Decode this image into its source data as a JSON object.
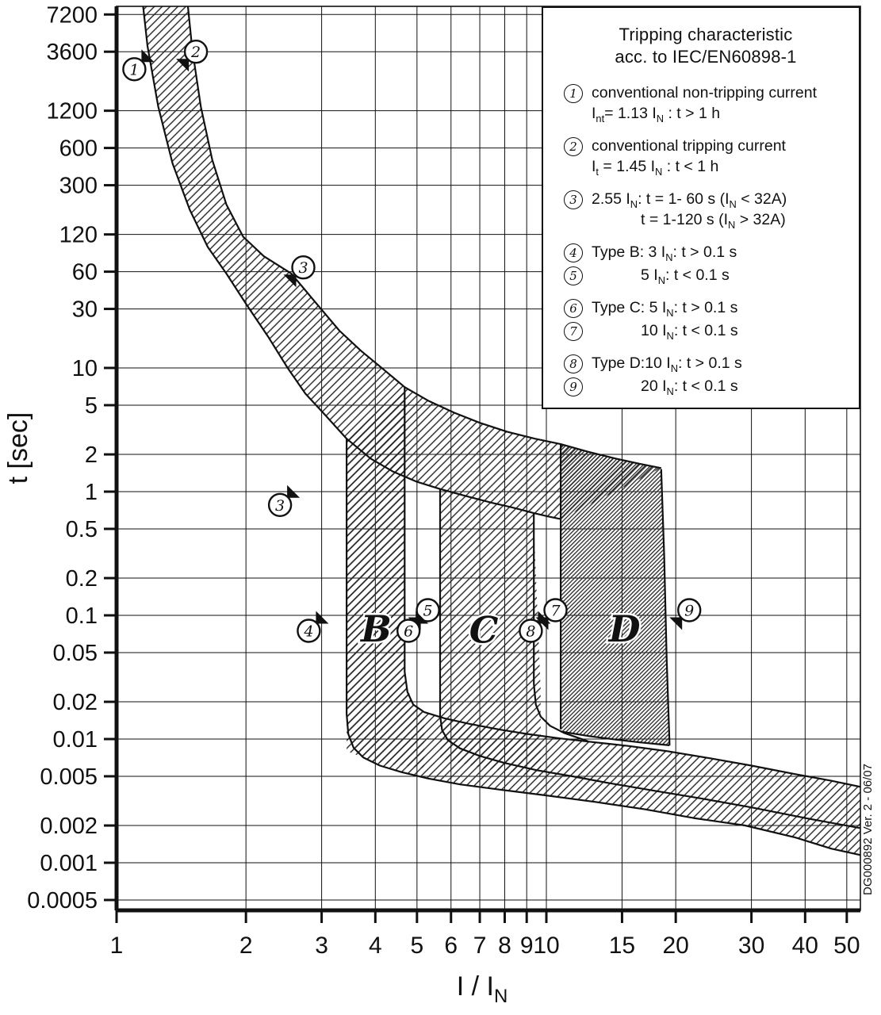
{
  "figure": {
    "y_axis_title": "t [sec]",
    "x_axis_title_segments": [
      {
        "t": "I / I"
      },
      {
        "sub": "N"
      }
    ],
    "code_label": "DG000892 Ver. 2 - 06/07"
  },
  "legend": {
    "title_lines": [
      "Tripping characteristic",
      "acc. to IEC/EN60898-1"
    ],
    "items": [
      {
        "num": "1",
        "gap_before": false,
        "lines": [
          {
            "indent": false,
            "segs": [
              {
                "t": "conventional non-tripping current"
              }
            ]
          },
          {
            "indent": false,
            "segs": [
              {
                "t": "I"
              },
              {
                "sub": "nt"
              },
              {
                "t": "= 1.13 I"
              },
              {
                "sub": "N"
              },
              {
                "t": " : t > 1 h"
              }
            ]
          }
        ]
      },
      {
        "num": "2",
        "gap_before": true,
        "lines": [
          {
            "indent": false,
            "segs": [
              {
                "t": "conventional tripping current"
              }
            ]
          },
          {
            "indent": false,
            "segs": [
              {
                "t": "I"
              },
              {
                "sub": "t"
              },
              {
                "t": " = 1.45 I"
              },
              {
                "sub": "N"
              },
              {
                "t": " : t < 1 h"
              }
            ]
          }
        ]
      },
      {
        "num": "3",
        "gap_before": true,
        "lines": [
          {
            "indent": false,
            "segs": [
              {
                "t": "2.55 I"
              },
              {
                "sub": "N"
              },
              {
                "t": ": t = 1- 60 s (I"
              },
              {
                "sub": "N"
              },
              {
                "t": " < 32A)"
              }
            ]
          },
          {
            "indent": true,
            "segs": [
              {
                "t": "t = 1-120 s (I"
              },
              {
                "sub": "N"
              },
              {
                "t": " > 32A)"
              }
            ]
          }
        ]
      },
      {
        "num": "4",
        "gap_before": true,
        "lines": [
          {
            "indent": false,
            "segs": [
              {
                "t": "Type B: 3 I"
              },
              {
                "sub": "N"
              },
              {
                "t": ": t > 0.1 s"
              }
            ]
          }
        ]
      },
      {
        "num": "5",
        "gap_before": false,
        "lines": [
          {
            "indent": true,
            "segs": [
              {
                "t": "5 I"
              },
              {
                "sub": "N"
              },
              {
                "t": ": t < 0.1 s"
              }
            ]
          }
        ]
      },
      {
        "num": "6",
        "gap_before": true,
        "lines": [
          {
            "indent": false,
            "segs": [
              {
                "t": "Type C: 5 I"
              },
              {
                "sub": "N"
              },
              {
                "t": ": t > 0.1 s"
              }
            ]
          }
        ]
      },
      {
        "num": "7",
        "gap_before": false,
        "lines": [
          {
            "indent": true,
            "segs": [
              {
                "t": "10 I"
              },
              {
                "sub": "N"
              },
              {
                "t": ": t < 0.1 s"
              }
            ]
          }
        ]
      },
      {
        "num": "8",
        "gap_before": true,
        "lines": [
          {
            "indent": false,
            "segs": [
              {
                "t": "Type D:10 I"
              },
              {
                "sub": "N"
              },
              {
                "t": ": t > 0.1 s"
              }
            ]
          }
        ]
      },
      {
        "num": "9",
        "gap_before": false,
        "lines": [
          {
            "indent": true,
            "segs": [
              {
                "t": "20 I"
              },
              {
                "sub": "N"
              },
              {
                "t": ": t < 0.1 s"
              }
            ]
          }
        ]
      }
    ]
  },
  "chart_data": {
    "type": "area",
    "title": "Tripping characteristic acc. to IEC/EN60898-1",
    "xlabel": "I / I_N",
    "ylabel": "t [sec]",
    "x_axis": {
      "scale": "log",
      "ticks": [
        1,
        2,
        3,
        4,
        5,
        6,
        7,
        8,
        9,
        10,
        15,
        20,
        30,
        40,
        50
      ],
      "range": [
        1,
        53.9
      ]
    },
    "y_axis": {
      "scale": "log",
      "ticks": [
        7200,
        3600,
        1200,
        600,
        300,
        120,
        60,
        30,
        10,
        5,
        2,
        1,
        0.5,
        0.2,
        0.1,
        0.05,
        0.02,
        0.01,
        0.005,
        0.002,
        0.001,
        0.0005
      ],
      "range": [
        0.00041,
        8400
      ]
    },
    "grid": true,
    "curves": {
      "conventional_non_tripping_1": [
        [
          1.14,
          12000
        ],
        [
          1.18,
          4000
        ],
        [
          1.25,
          1300
        ],
        [
          1.35,
          450
        ],
        [
          1.48,
          190
        ],
        [
          1.63,
          95
        ],
        [
          1.8,
          58
        ],
        [
          2.0,
          33
        ],
        [
          2.25,
          18
        ],
        [
          2.5,
          10
        ],
        [
          2.75,
          6.2
        ],
        [
          3.05,
          4.2
        ],
        [
          3.43,
          2.68
        ],
        [
          3.9,
          1.85
        ],
        [
          4.4,
          1.45
        ],
        [
          5.0,
          1.2
        ],
        [
          5.66,
          1.05
        ],
        [
          6.5,
          0.92
        ],
        [
          7.5,
          0.81
        ],
        [
          8.4,
          0.74
        ],
        [
          9.35,
          0.67
        ],
        [
          10.1,
          0.63
        ],
        [
          10.8,
          0.6
        ]
      ],
      "conventional_tripping_2": [
        [
          1.45,
          12000
        ],
        [
          1.5,
          3800
        ],
        [
          1.57,
          1300
        ],
        [
          1.67,
          480
        ],
        [
          1.8,
          210
        ],
        [
          1.97,
          115
        ],
        [
          2.2,
          80
        ],
        [
          2.55,
          58
        ],
        [
          2.9,
          34
        ],
        [
          3.3,
          20
        ],
        [
          3.7,
          13.8
        ],
        [
          4.2,
          9.6
        ],
        [
          4.68,
          7.0
        ],
        [
          5.3,
          5.45
        ],
        [
          6.1,
          4.35
        ],
        [
          7.0,
          3.6
        ],
        [
          8.1,
          3.05
        ],
        [
          9.4,
          2.68
        ],
        [
          10.8,
          2.42
        ],
        [
          12.5,
          2.1
        ],
        [
          14.5,
          1.85
        ],
        [
          16.5,
          1.68
        ],
        [
          18.5,
          1.55
        ]
      ],
      "b_lower_boundary": [
        [
          3.43,
          2.68
        ],
        [
          3.43,
          0.016
        ],
        [
          3.46,
          0.011
        ],
        [
          3.56,
          0.0085
        ],
        [
          3.75,
          0.0071
        ],
        [
          4.1,
          0.0061
        ],
        [
          4.6,
          0.0054
        ],
        [
          5.3,
          0.0048
        ],
        [
          6.3,
          0.0043
        ],
        [
          7.8,
          0.0039
        ],
        [
          10,
          0.0035
        ],
        [
          13,
          0.0031
        ],
        [
          17,
          0.0027
        ],
        [
          22,
          0.0023
        ],
        [
          29,
          0.002
        ],
        [
          38,
          0.0016
        ],
        [
          46,
          0.0013
        ],
        [
          54,
          0.00115
        ]
      ],
      "b_upper_boundary": [
        [
          4.68,
          7.0
        ],
        [
          4.68,
          0.035
        ],
        [
          4.75,
          0.024
        ],
        [
          4.9,
          0.019
        ],
        [
          5.2,
          0.0165
        ],
        [
          5.8,
          0.0147
        ],
        [
          6.6,
          0.0133
        ],
        [
          7.7,
          0.012
        ],
        [
          9.0,
          0.011
        ],
        [
          10.8,
          0.0101
        ],
        [
          13,
          0.0094
        ],
        [
          15.5,
          0.0088
        ],
        [
          19,
          0.008
        ],
        [
          24,
          0.007
        ],
        [
          30,
          0.0061
        ],
        [
          38,
          0.0052
        ],
        [
          46,
          0.0046
        ],
        [
          54,
          0.0041
        ]
      ],
      "c_lower_boundary": [
        [
          5.66,
          1.05
        ],
        [
          5.66,
          0.0155
        ],
        [
          5.72,
          0.0118
        ],
        [
          5.9,
          0.0098
        ],
        [
          6.3,
          0.0084
        ],
        [
          7.0,
          0.0073
        ],
        [
          8.0,
          0.0064
        ],
        [
          9.5,
          0.0056
        ],
        [
          11.5,
          0.005
        ],
        [
          14,
          0.0044
        ],
        [
          18,
          0.0038
        ],
        [
          23,
          0.0033
        ],
        [
          30,
          0.0028
        ],
        [
          40,
          0.0023
        ],
        [
          54,
          0.0019
        ]
      ],
      "c_upper_boundary": [
        [
          9.35,
          0.67
        ],
        [
          9.35,
          0.028
        ],
        [
          9.45,
          0.019
        ],
        [
          9.7,
          0.0152
        ],
        [
          10.2,
          0.0128
        ],
        [
          11.0,
          0.0112
        ],
        [
          12.5,
          0.0096
        ]
      ],
      "d_left_edge": [
        [
          10.8,
          2.42
        ],
        [
          10.8,
          0.012
        ]
      ],
      "d_bottom_edge": [
        [
          10.8,
          0.0115
        ],
        [
          12.5,
          0.0106
        ],
        [
          14.5,
          0.0099
        ],
        [
          16.5,
          0.0094
        ],
        [
          19.35,
          0.0089
        ]
      ],
      "d_right_edge": [
        [
          18.5,
          1.52
        ],
        [
          18.8,
          0.3
        ],
        [
          19.05,
          0.045
        ],
        [
          19.35,
          0.0089
        ]
      ]
    },
    "regions": {
      "b_column": [
        [
          3.43,
          2.7
        ],
        [
          3.43,
          0.008
        ],
        [
          4.0,
          0.0065
        ],
        [
          5.2,
          0.0058
        ],
        [
          5.2,
          0.0165
        ],
        [
          4.9,
          0.019
        ],
        [
          4.68,
          0.03
        ],
        [
          4.68,
          7.0
        ],
        [
          4.0,
          3.9
        ]
      ],
      "c_column": [
        [
          5.66,
          1.05
        ],
        [
          5.66,
          0.007
        ],
        [
          7.0,
          0.0059
        ],
        [
          9.7,
          0.005
        ],
        [
          9.7,
          0.025
        ],
        [
          9.35,
          0.55
        ],
        [
          9.35,
          0.67
        ],
        [
          8.0,
          0.77
        ],
        [
          6.8,
          0.88
        ]
      ],
      "d_column": [
        [
          10.8,
          2.42
        ],
        [
          10.8,
          0.0115
        ],
        [
          12.5,
          0.0106
        ],
        [
          14.5,
          0.0099
        ],
        [
          16.5,
          0.0094
        ],
        [
          19.35,
          0.0089
        ],
        [
          19.05,
          0.045
        ],
        [
          18.8,
          0.3
        ],
        [
          18.5,
          1.52
        ],
        [
          16.5,
          1.68
        ],
        [
          14.5,
          1.85
        ],
        [
          12.5,
          2.1
        ]
      ]
    },
    "band_labels": [
      {
        "text": "B",
        "x": 4.02,
        "t": 0.078
      },
      {
        "text": "C",
        "x": 7.15,
        "t": 0.076
      },
      {
        "text": "D",
        "x": 15.2,
        "t": 0.078
      }
    ],
    "markers": [
      {
        "num": "1",
        "x": 1.1,
        "t": 2600,
        "dir": "ne"
      },
      {
        "num": "2",
        "x": 1.53,
        "t": 3600,
        "dir": "sw"
      },
      {
        "num": "3",
        "x": 2.72,
        "t": 65,
        "dir": "sw"
      },
      {
        "num": "3",
        "x": 2.4,
        "t": 0.78,
        "dir": "ne"
      },
      {
        "num": "4",
        "x": 2.8,
        "t": 0.075,
        "dir": "ne"
      },
      {
        "num": "5",
        "x": 5.3,
        "t": 0.11,
        "dir": "sw"
      },
      {
        "num": "6",
        "x": 4.78,
        "t": 0.075,
        "dir": "ne"
      },
      {
        "num": "7",
        "x": 10.5,
        "t": 0.11,
        "dir": "sw"
      },
      {
        "num": "8",
        "x": 9.2,
        "t": 0.075,
        "dir": "ne"
      },
      {
        "num": "9",
        "x": 21.5,
        "t": 0.11,
        "dir": "sw"
      }
    ]
  }
}
